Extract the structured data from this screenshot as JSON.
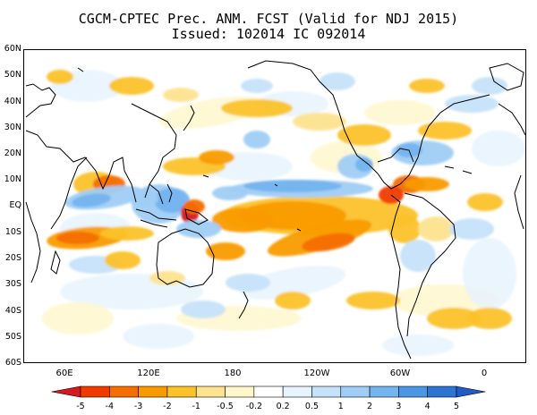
{
  "title": {
    "line1": "CGCM-CPTEC Prec. ANM. FCST  (Valid for NDJ 2015)",
    "line2": "Issued:  102014 IC 092014"
  },
  "lat_labels": [
    "60N",
    "50N",
    "40N",
    "30N",
    "20N",
    "10N",
    "EQ",
    "10S",
    "20S",
    "30S",
    "40S",
    "50S",
    "60S"
  ],
  "lon_labels": [
    "60E",
    "120E",
    "180",
    "120W",
    "60W",
    "0"
  ],
  "colorbar": {
    "labels": [
      "-5",
      "-4",
      "-3",
      "-2",
      "-1",
      "-0.5",
      "-0.2",
      "0.2",
      "0.5",
      "1",
      "2",
      "3",
      "4",
      "5"
    ],
    "colors": [
      "#d7191c",
      "#ef3b00",
      "#f56e00",
      "#f99b00",
      "#fbc22a",
      "#fde38f",
      "#fff7cc",
      "#ffffff",
      "#e7f3fd",
      "#c6e2fa",
      "#9fcdf5",
      "#74b4ef",
      "#4d96e2",
      "#2d74d3",
      "#1e5bc6"
    ]
  },
  "chart_data": {
    "type": "heatmap",
    "title": "CGCM-CPTEC Prec. ANM. FCST  (Valid for NDJ 2015)",
    "subtitle": "Issued:  102014 IC 092014",
    "xlabel": "",
    "ylabel": "",
    "x_range": [
      "30E",
      "30E"
    ],
    "y_range": [
      "60S",
      "60N"
    ],
    "x_ticks": [
      "60E",
      "120E",
      "180",
      "120W",
      "60W",
      "0"
    ],
    "y_ticks": [
      "60N",
      "50N",
      "40N",
      "30N",
      "20N",
      "10N",
      "EQ",
      "10S",
      "20S",
      "30S",
      "40S",
      "50S",
      "60S"
    ],
    "levels": [
      -5,
      -4,
      -3,
      -2,
      -1,
      -0.5,
      -0.2,
      0.2,
      0.5,
      1,
      2,
      3,
      4,
      5
    ],
    "anomaly_features": [
      {
        "name": "central_pacific_dry_tongue",
        "lon": -150,
        "lat": -4,
        "value": -2
      },
      {
        "name": "south_pacific_dry_band",
        "lon": -135,
        "lat": -10,
        "value": -3
      },
      {
        "name": "indian_ocean_south_dry_band",
        "lon": 80,
        "lat": -10,
        "value": -3
      },
      {
        "name": "new_guinea_dry",
        "lon": 145,
        "lat": -5,
        "value": -5
      },
      {
        "name": "bay_of_bengal_dry",
        "lon": 88,
        "lat": 12,
        "value": -3
      },
      {
        "name": "central_america_dry",
        "lon": -78,
        "lat": 12,
        "value": -3
      },
      {
        "name": "indian_ocean_eq_wet",
        "lon": 75,
        "lat": 3,
        "value": 2
      },
      {
        "name": "maritime_continent_wet",
        "lon": 128,
        "lat": 0,
        "value": 3
      },
      {
        "name": "north_pacific_itcz_wet",
        "lon": -148,
        "lat": 14,
        "value": 2
      },
      {
        "name": "gulf_of_mexico_wet",
        "lon": -88,
        "lat": 22,
        "value": 2
      },
      {
        "name": "amazon_wet",
        "lon": -62,
        "lat": -4,
        "value": 1
      }
    ]
  }
}
